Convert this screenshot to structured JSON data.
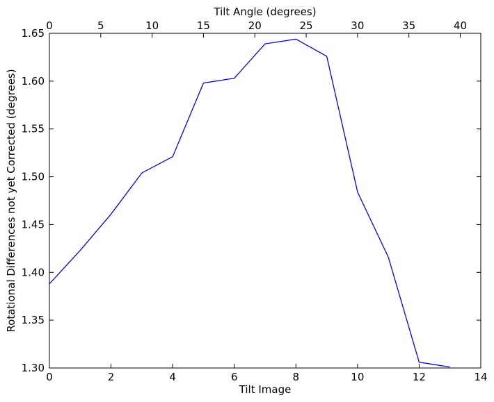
{
  "chart_data": {
    "type": "line",
    "title": "",
    "xlabel": "Tilt Image",
    "ylabel": "Rotational Differences not yet Corrected (degrees)",
    "x2label": "Tilt Angle (degrees)",
    "xlim": [
      0,
      14
    ],
    "ylim": [
      1.3,
      1.65
    ],
    "x2lim": [
      0,
      42
    ],
    "xticks": [
      "0",
      "2",
      "4",
      "6",
      "8",
      "10",
      "12",
      "14"
    ],
    "yticks": [
      "1.30",
      "1.35",
      "1.40",
      "1.45",
      "1.50",
      "1.55",
      "1.60",
      "1.65"
    ],
    "x2ticks": [
      "0",
      "5",
      "10",
      "15",
      "20",
      "25",
      "30",
      "35",
      "40"
    ],
    "grid": false,
    "series": [
      {
        "color": "#0000ff",
        "x": [
          0,
          1,
          2,
          3,
          4,
          5,
          6,
          7,
          8,
          9,
          10,
          11,
          12,
          13
        ],
        "y": [
          1.388,
          1.423,
          1.461,
          1.504,
          1.521,
          1.598,
          1.603,
          1.639,
          1.644,
          1.626,
          1.484,
          1.416,
          1.306,
          1.301
        ]
      }
    ]
  }
}
